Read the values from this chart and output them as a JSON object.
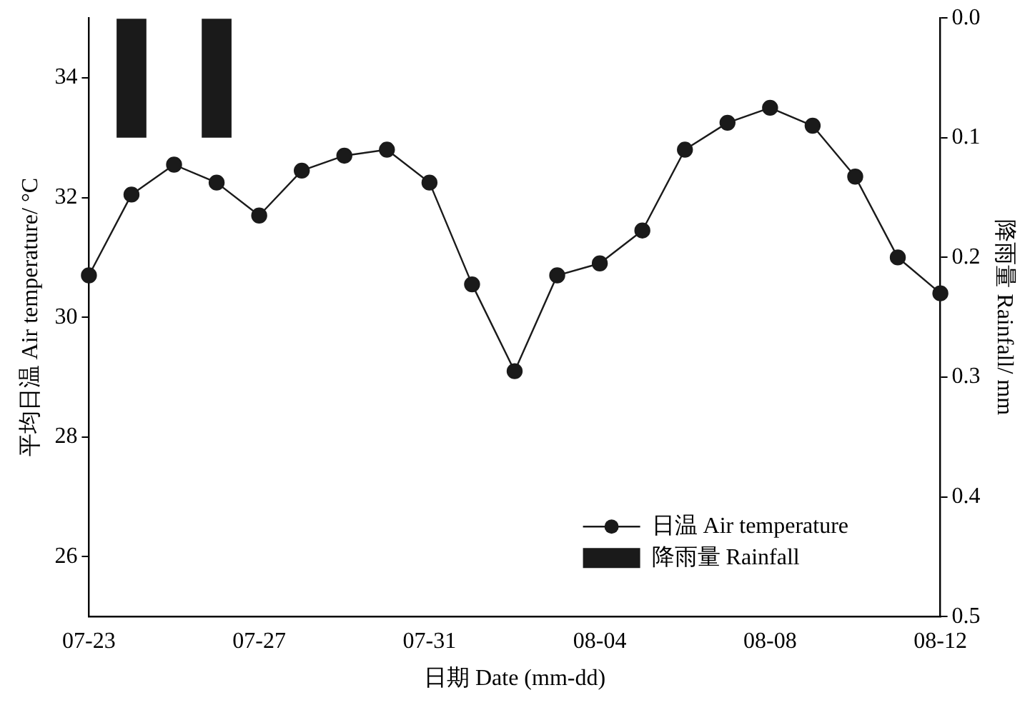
{
  "chart_data": {
    "type": "line",
    "xlabel": "日期 Date (mm-dd)",
    "ylabel": "平均日温 Air temperature/ °C",
    "y2label": "降雨量 Rainfall/ mm",
    "categories": [
      "07-23",
      null,
      null,
      null,
      "07-27",
      null,
      null,
      null,
      "07-31",
      null,
      null,
      null,
      "08-04",
      null,
      null,
      null,
      "08-08",
      null,
      null,
      null,
      "08-12"
    ],
    "series": [
      {
        "name": "日温 Air temperature",
        "color": "#1a1a1a",
        "values": [
          30.7,
          32.05,
          32.55,
          32.25,
          31.7,
          32.45,
          32.7,
          32.8,
          32.25,
          30.55,
          29.1,
          30.7,
          30.9,
          31.45,
          32.8,
          33.25,
          33.5,
          33.2,
          32.35,
          31.0,
          30.4
        ]
      },
      {
        "name": "降雨量 Rainfall",
        "type": "bar",
        "axis": "y2",
        "color": "#1a1a1a",
        "values": [
          null,
          0.1,
          null,
          0.1,
          null,
          null,
          null,
          null,
          null,
          null,
          null,
          null,
          null,
          null,
          null,
          null,
          null,
          null,
          null,
          null,
          null
        ]
      }
    ],
    "ylim": [
      25,
      35
    ],
    "yticks": [
      26,
      28,
      30,
      32,
      34
    ],
    "y2lim": [
      0.5,
      0
    ],
    "y2ticks": [
      {
        "value": 0,
        "label": "0.0"
      },
      {
        "value": 0.1,
        "label": "0.1"
      },
      {
        "value": 0.2,
        "label": "0.2"
      },
      {
        "value": 0.3,
        "label": "0.3"
      },
      {
        "value": 0.4,
        "label": "0.4"
      },
      {
        "value": 0.5,
        "label": "0.5"
      }
    ],
    "grid": false,
    "legend": "bottom right",
    "marker": "circle",
    "line_style": "solid"
  }
}
